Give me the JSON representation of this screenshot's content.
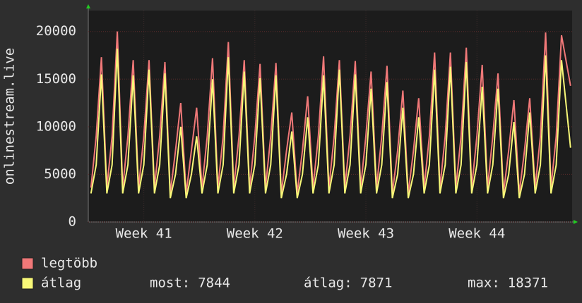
{
  "chart_data": {
    "type": "line",
    "y_label": "onlinestream.live",
    "x": [
      0.17,
      0.5,
      0.83,
      1.17,
      1.5,
      1.83,
      2.17,
      2.5,
      2.83,
      3.17,
      3.5,
      3.83,
      4.17,
      4.5,
      4.83,
      5.17,
      5.5,
      5.83,
      6.17,
      6.5,
      6.83,
      7.17,
      7.5,
      7.83,
      8.17,
      8.5,
      8.83,
      9.17,
      9.5,
      9.83,
      10.17,
      10.5,
      10.83,
      11.17,
      11.5,
      11.83,
      12.17,
      12.5,
      12.83,
      13.17,
      13.5,
      13.83,
      14.17,
      14.5,
      14.83,
      15.17,
      15.5,
      15.83,
      16.17,
      16.5,
      16.83,
      17.17,
      17.5,
      17.83,
      18.17,
      18.5,
      18.83,
      19.17,
      19.5,
      19.83,
      20.17,
      20.5,
      20.83,
      21.17,
      21.5,
      21.83,
      22.17,
      22.5,
      22.83,
      23.17,
      23.5,
      23.83,
      24.17,
      24.5,
      24.83,
      25.17,
      25.5,
      25.83,
      26.17,
      26.5,
      26.83,
      27.17,
      27.5,
      27.83,
      28.17,
      28.5,
      28.83,
      29.17,
      29.5,
      29.83,
      30.4
    ],
    "series": [
      {
        "name": "legtöbb",
        "color": "#f07878",
        "values": [
          3600,
          9000,
          17300,
          3600,
          9000,
          20000,
          3600,
          9000,
          17000,
          3600,
          9000,
          17000,
          3600,
          9000,
          16800,
          3000,
          7500,
          12500,
          3000,
          7500,
          12000,
          3600,
          9000,
          17200,
          3600,
          9000,
          18900,
          3600,
          9000,
          17000,
          3600,
          9000,
          16600,
          3600,
          9000,
          16700,
          3000,
          7500,
          11500,
          3000,
          7500,
          13200,
          3600,
          9000,
          17400,
          3600,
          9000,
          17000,
          3600,
          9000,
          16900,
          3600,
          9000,
          15800,
          3600,
          9000,
          16400,
          3000,
          7500,
          13800,
          3000,
          7500,
          13000,
          3600,
          9000,
          17800,
          3600,
          9000,
          17800,
          3600,
          9000,
          18300,
          3600,
          9000,
          16500,
          3600,
          9000,
          15600,
          3000,
          7500,
          12800,
          3000,
          7500,
          13000,
          3600,
          9000,
          19900,
          3600,
          9000,
          19600,
          14300
        ]
      },
      {
        "name": "átlag",
        "color": "#f8f878",
        "values": [
          3000,
          6000,
          15500,
          3000,
          6000,
          18200,
          3000,
          6000,
          15400,
          3000,
          6000,
          16000,
          3000,
          6000,
          15600,
          2500,
          5000,
          10000,
          2500,
          5000,
          9000,
          3000,
          6000,
          15000,
          3000,
          6000,
          17300,
          3000,
          6000,
          15800,
          3000,
          6000,
          15100,
          3000,
          6000,
          15400,
          2500,
          5000,
          9500,
          2500,
          5000,
          11000,
          3000,
          6000,
          15400,
          3000,
          6000,
          16000,
          3000,
          6000,
          15500,
          3000,
          6000,
          14000,
          3000,
          6000,
          14700,
          2500,
          5000,
          12000,
          2500,
          5000,
          11000,
          3000,
          6000,
          16000,
          3000,
          6000,
          16300,
          3000,
          6000,
          16800,
          3000,
          6000,
          14200,
          3000,
          6000,
          14000,
          2500,
          5000,
          10500,
          2500,
          5000,
          11500,
          3000,
          6000,
          17500,
          3000,
          6000,
          17000,
          7800
        ]
      }
    ],
    "xlim": [
      0,
      30.5
    ],
    "xticks": [
      {
        "value": 3.5,
        "label": "Week 41"
      },
      {
        "value": 10.5,
        "label": "Week 42"
      },
      {
        "value": 17.5,
        "label": "Week 43"
      },
      {
        "value": 24.5,
        "label": "Week 44"
      }
    ],
    "ylim": [
      0,
      22200
    ],
    "yticks": [
      0,
      5000,
      10000,
      15000,
      20000
    ],
    "grid": true,
    "stats": [
      {
        "label": "most:",
        "value": 7844
      },
      {
        "label": "átlag:",
        "value": 7871
      },
      {
        "label": "max:",
        "value": 18371
      }
    ]
  }
}
